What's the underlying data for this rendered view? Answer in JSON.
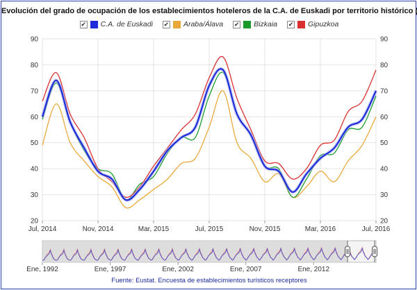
{
  "chart_data": {
    "type": "line",
    "title": "Evolución del grado de ocupación de los establecimientos hoteleros de la C.A. de Euskadi por territorio histórico (%)",
    "x_labels": [
      "Jul, 2014",
      "Nov, 2014",
      "Mar, 2015",
      "Jul, 2015",
      "Nov, 2015",
      "Mar, 2016",
      "Jul, 2016"
    ],
    "x": [
      "2014-07",
      "2014-08",
      "2014-09",
      "2014-10",
      "2014-11",
      "2014-12",
      "2015-01",
      "2015-02",
      "2015-03",
      "2015-04",
      "2015-05",
      "2015-06",
      "2015-07",
      "2015-08",
      "2015-09",
      "2015-10",
      "2015-11",
      "2015-12",
      "2016-01",
      "2016-02",
      "2016-03",
      "2016-04",
      "2016-05",
      "2016-06",
      "2016-07"
    ],
    "ylim": [
      20,
      90
    ],
    "yticks": [
      20,
      30,
      40,
      50,
      60,
      70,
      80,
      90
    ],
    "grid": true,
    "legend_position": "top",
    "series": [
      {
        "name": "C.A. de Euskadi",
        "color": "#1f2bd9",
        "values": [
          60,
          74,
          58,
          48,
          39,
          36,
          28,
          32,
          39,
          47,
          52,
          56,
          72,
          78,
          61,
          53,
          41,
          39,
          31,
          38,
          44,
          48,
          56,
          59,
          70
        ]
      },
      {
        "name": "Araba/Álava",
        "color": "#e9a93a",
        "values": [
          49,
          65,
          50,
          43,
          37,
          33,
          25,
          28,
          32,
          36,
          42,
          44,
          56,
          70,
          50,
          44,
          35,
          38,
          29,
          33,
          39,
          35,
          43,
          49,
          60
        ]
      },
      {
        "name": "Bizkaia",
        "color": "#1a9a2a",
        "values": [
          59,
          73,
          58,
          47,
          40,
          38,
          28,
          34,
          37,
          46,
          52,
          52,
          68,
          77,
          61,
          53,
          41,
          40,
          29,
          36,
          45,
          46,
          55,
          56,
          68
        ]
      },
      {
        "name": "Gipuzkoa",
        "color": "#d83030",
        "values": [
          66,
          77,
          61,
          52,
          40,
          35,
          29,
          33,
          41,
          48,
          55,
          61,
          75,
          83,
          67,
          55,
          43,
          42,
          36,
          40,
          49,
          51,
          62,
          66,
          78
        ]
      }
    ],
    "navigator": {
      "labels": [
        "Ene, 1992",
        "Ene, 1997",
        "Ene, 2002",
        "Ene, 2007",
        "Ene, 2012"
      ],
      "range": [
        1992,
        2016.6
      ],
      "selected": [
        2014.5,
        2016.5
      ]
    }
  },
  "legend": {
    "check": "✔"
  },
  "source": "Fuente: Eustat. Encuesta de establecimientos turísticos receptores"
}
